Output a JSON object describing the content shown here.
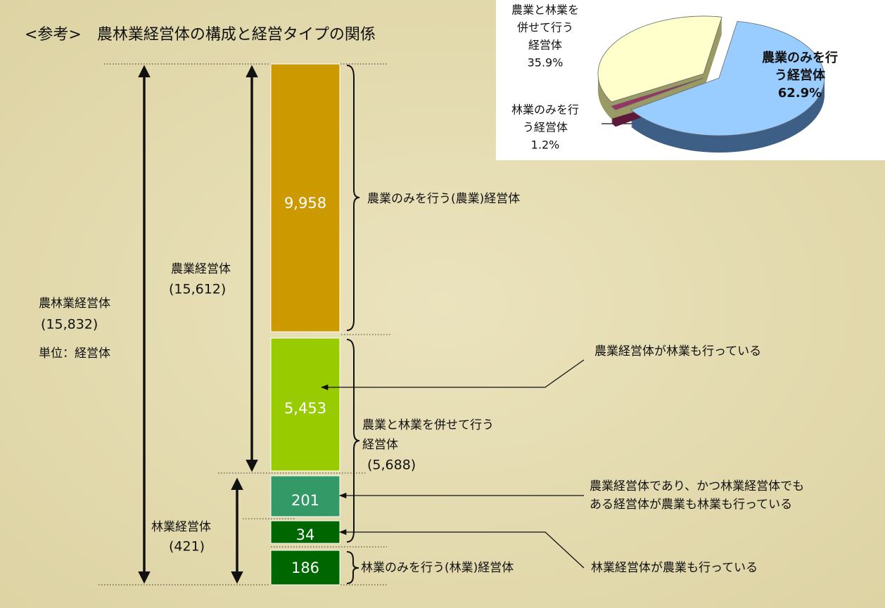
{
  "title": "<参考>　農林業経営体の構成と経営タイプの関係",
  "bar_segments": [
    "9,958",
    "5,453",
    "201",
    "34",
    "186"
  ],
  "ranges": [
    {
      "label": "農林業経営体",
      "value": "(15,832)"
    },
    {
      "label": "農業経営体",
      "value": "(15,612)"
    },
    {
      "label": "林業経営体",
      "value": "(421)"
    }
  ],
  "unit": "単位：経営体",
  "brackets": [
    "農業のみを行う(農業)経営体",
    [
      "農業と林業を併せて行う",
      "経営体",
      "(5,688)"
    ],
    "林業のみを行う(林業)経営体"
  ],
  "callouts": [
    "農業経営体が林業も行っている",
    "農業経営体であり、かつ林業経営体でも",
    "ある経営体が農業も林業も行っている",
    "林業経営体が農業も行っている"
  ],
  "pie": {
    "type": "pie",
    "labels": [
      [
        "農業のみを行",
        "う経営体"
      ],
      [
        "林業のみを行",
        "う経営体"
      ],
      [
        "農業と林業を",
        "併せて行う",
        "経営体"
      ]
    ],
    "values": [
      62.9,
      1.2,
      35.9
    ],
    "value_labels": [
      "62.9%",
      "1.2%",
      "35.9%"
    ],
    "colors": [
      "#99ccff",
      "#993366",
      "#ffffcc"
    ]
  }
}
